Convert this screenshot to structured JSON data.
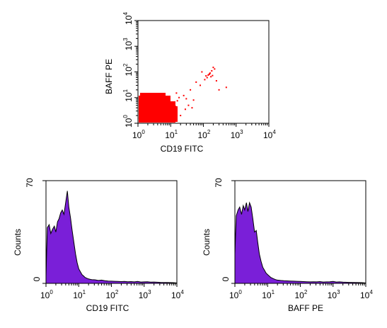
{
  "chart_data": [
    {
      "type": "scatter",
      "xlabel": "CD19 FITC",
      "ylabel": "BAFF  PE",
      "xscale": "log",
      "yscale": "log",
      "xlim": [
        1,
        10000
      ],
      "ylim": [
        1,
        10000
      ],
      "color": "#ff0000",
      "tick_base": "10",
      "tick_exponents": [
        "0",
        "1",
        "2",
        "3",
        "4"
      ],
      "points": [
        [
          1.3,
          1.2
        ],
        [
          1.8,
          1.5
        ],
        [
          2.4,
          1.3
        ],
        [
          3.1,
          2.0
        ],
        [
          4.5,
          1.8
        ],
        [
          6.0,
          2.6
        ],
        [
          1.5,
          3.0
        ],
        [
          2.2,
          4.1
        ],
        [
          3.6,
          3.3
        ],
        [
          5.0,
          4.6
        ],
        [
          7.2,
          3.1
        ],
        [
          9.0,
          2.2
        ],
        [
          1.2,
          5.5
        ],
        [
          2.8,
          6.2
        ],
        [
          4.0,
          7.0
        ],
        [
          6.5,
          5.4
        ],
        [
          10.0,
          4.0
        ],
        [
          12.0,
          6.0
        ],
        [
          3.3,
          9.0
        ],
        [
          8.0,
          9.5
        ],
        [
          1.6,
          2.2
        ],
        [
          2.0,
          2.8
        ],
        [
          2.6,
          1.9
        ],
        [
          3.4,
          2.4
        ],
        [
          4.2,
          3.6
        ],
        [
          5.5,
          2.1
        ],
        [
          1.1,
          1.6
        ],
        [
          1.4,
          4.4
        ],
        [
          2.5,
          3.7
        ],
        [
          3.0,
          5.0
        ],
        [
          4.8,
          2.9
        ],
        [
          6.2,
          4.2
        ],
        [
          7.8,
          2.5
        ],
        [
          9.5,
          5.8
        ],
        [
          11.0,
          3.0
        ],
        [
          14.0,
          4.5
        ],
        [
          16.0,
          7.5
        ],
        [
          1.9,
          7.8
        ],
        [
          5.2,
          8.2
        ],
        [
          2.2,
          12.0
        ],
        [
          6.0,
          11.0
        ],
        [
          18.0,
          10.0
        ],
        [
          25.0,
          12.0
        ],
        [
          30.0,
          9.0
        ],
        [
          40.0,
          20.0
        ],
        [
          15.0,
          15.0
        ],
        [
          60.0,
          40.0
        ],
        [
          120.0,
          70.0
        ],
        [
          150.0,
          80.0
        ],
        [
          180.0,
          110.0
        ],
        [
          130.0,
          60.0
        ],
        [
          160.0,
          90.0
        ],
        [
          200.0,
          150.0
        ],
        [
          110.0,
          50.0
        ],
        [
          170.0,
          65.0
        ],
        [
          220.0,
          130.0
        ],
        [
          90.0,
          100.0
        ],
        [
          250.0,
          45.0
        ],
        [
          300.0,
          20.0
        ],
        [
          80.0,
          30.0
        ],
        [
          140.0,
          75.0
        ],
        [
          155.0,
          85.0
        ],
        [
          190.0,
          72.0
        ],
        [
          50.0,
          8.0
        ],
        [
          35.0,
          5.0
        ],
        [
          500.0,
          25.0
        ],
        [
          20.0,
          2.0
        ],
        [
          28.0,
          3.5
        ],
        [
          12.0,
          1.5
        ],
        [
          45.0,
          4.0
        ]
      ]
    },
    {
      "type": "area",
      "xlabel": "CD19 FITC",
      "ylabel": "Counts",
      "xscale": "log",
      "xlim": [
        1,
        10000
      ],
      "ylim": [
        0,
        70
      ],
      "color": "#7a1fd8",
      "ytick_labels": [
        "0",
        "70"
      ],
      "tick_base": "10",
      "tick_exponents": [
        "0",
        "1",
        "2",
        "3",
        "4"
      ],
      "x": [
        1.0,
        1.1,
        1.25,
        1.4,
        1.6,
        1.8,
        2.0,
        2.25,
        2.5,
        2.8,
        3.15,
        3.55,
        4.0,
        4.5,
        5.0,
        5.6,
        6.3,
        7.1,
        8.0,
        9.0,
        10.0,
        11.2,
        12.6,
        14.1,
        15.8,
        17.8,
        20.0,
        25.0,
        31.6,
        39.8,
        50.1,
        63.1,
        79.4,
        100.0,
        126.0,
        158.0,
        200.0,
        251.0,
        316.0,
        398.0,
        501.0,
        631.0,
        794.0,
        1000.0,
        1260.0,
        1585.0,
        2000.0,
        3162.0,
        5012.0,
        7943.0,
        10000.0
      ],
      "y": [
        5,
        38,
        40,
        34,
        37,
        39,
        35,
        42,
        44,
        48,
        50,
        47,
        55,
        63,
        52,
        45,
        36,
        28,
        20,
        14,
        10,
        8,
        6,
        5,
        4,
        3.5,
        3,
        2.5,
        2.4,
        2,
        2.2,
        1.8,
        1.6,
        1.5,
        1.4,
        1.3,
        1.2,
        1.3,
        1.1,
        1.2,
        1.0,
        1.3,
        0.9,
        1.0,
        1.1,
        0.8,
        0.9,
        0.7,
        0.6,
        0.5,
        0.3
      ]
    },
    {
      "type": "area",
      "xlabel": "BAFF  PE",
      "ylabel": "Counts",
      "xscale": "log",
      "xlim": [
        1,
        10000
      ],
      "ylim": [
        0,
        70
      ],
      "color": "#7a1fd8",
      "ytick_labels": [
        "0",
        "70"
      ],
      "tick_base": "10",
      "tick_exponents": [
        "0",
        "1",
        "2",
        "3",
        "4"
      ],
      "x": [
        1.0,
        1.1,
        1.25,
        1.4,
        1.6,
        1.8,
        2.0,
        2.25,
        2.5,
        2.8,
        3.15,
        3.55,
        4.0,
        4.5,
        5.0,
        5.6,
        6.3,
        7.1,
        8.0,
        9.0,
        10.0,
        11.2,
        12.6,
        14.1,
        15.8,
        17.8,
        20.0,
        25.0,
        31.6,
        39.8,
        50.1,
        63.1,
        79.4,
        100.0,
        126.0,
        158.0,
        200.0,
        251.0,
        316.0,
        398.0,
        501.0,
        631.0,
        794.0,
        1000.0,
        1260.0,
        1585.0,
        2000.0,
        3162.0,
        5012.0,
        7943.0,
        10000.0
      ],
      "y": [
        20,
        46,
        50,
        52,
        47,
        53,
        50,
        55,
        49,
        55,
        52,
        44,
        35,
        36,
        28,
        20,
        15,
        11,
        9,
        7,
        6,
        5,
        4,
        3.5,
        3,
        2.5,
        2.2,
        2,
        1.8,
        1.7,
        1.6,
        1.5,
        1.4,
        1.3,
        1.2,
        1.1,
        1.0,
        1.1,
        1.0,
        1.2,
        0.9,
        1.0,
        1.1,
        1.3,
        0.9,
        1.0,
        0.8,
        0.7,
        0.6,
        0.5,
        0.3
      ]
    }
  ]
}
